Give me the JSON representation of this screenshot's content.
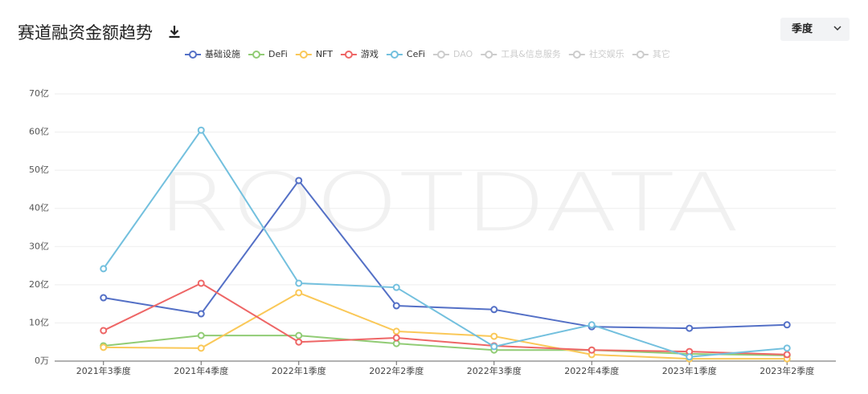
{
  "chart_data": {
    "type": "line",
    "title": "赛道融资金额趋势",
    "period_selector": "季度",
    "watermark": "ROOTDATA",
    "categories": [
      "2021年3季度",
      "2021年4季度",
      "2022年1季度",
      "2022年2季度",
      "2022年3季度",
      "2022年4季度",
      "2023年1季度",
      "2023年2季度"
    ],
    "series": [
      {
        "name": "基础设施",
        "color": "#5470c6",
        "enabled": true,
        "values": [
          16.6,
          12.4,
          47.3,
          14.5,
          13.5,
          9.0,
          8.6,
          9.5
        ]
      },
      {
        "name": "DeFi",
        "color": "#91cc75",
        "enabled": true,
        "values": [
          4.0,
          6.7,
          6.7,
          4.6,
          2.9,
          2.9,
          1.9,
          1.5
        ]
      },
      {
        "name": "NFT",
        "color": "#fac858",
        "enabled": true,
        "values": [
          3.6,
          3.4,
          17.9,
          7.8,
          6.5,
          1.7,
          0.6,
          0.6
        ]
      },
      {
        "name": "游戏",
        "color": "#ee6666",
        "enabled": true,
        "values": [
          8.0,
          20.4,
          5.0,
          6.1,
          4.0,
          2.9,
          2.5,
          1.7
        ]
      },
      {
        "name": "CeFi",
        "color": "#73c0de",
        "enabled": true,
        "values": [
          24.2,
          60.5,
          20.4,
          19.3,
          3.8,
          9.5,
          1.1,
          3.4
        ]
      },
      {
        "name": "DAO",
        "color": "#cccccc",
        "enabled": false,
        "values": [
          null,
          null,
          null,
          null,
          null,
          null,
          null,
          null
        ]
      },
      {
        "name": "工具&信息服务",
        "color": "#cccccc",
        "enabled": false,
        "values": [
          null,
          null,
          null,
          null,
          null,
          null,
          null,
          null
        ]
      },
      {
        "name": "社交娱乐",
        "color": "#cccccc",
        "enabled": false,
        "values": [
          null,
          null,
          null,
          null,
          null,
          null,
          null,
          null
        ]
      },
      {
        "name": "其它",
        "color": "#cccccc",
        "enabled": false,
        "values": [
          null,
          null,
          null,
          null,
          null,
          null,
          null,
          null
        ]
      }
    ],
    "ylim": [
      0,
      70
    ],
    "yticks": [
      {
        "value": 0,
        "label": "0万"
      },
      {
        "value": 10,
        "label": "10亿"
      },
      {
        "value": 20,
        "label": "20亿"
      },
      {
        "value": 30,
        "label": "30亿"
      },
      {
        "value": 40,
        "label": "40亿"
      },
      {
        "value": 50,
        "label": "50亿"
      },
      {
        "value": 60,
        "label": "60亿"
      },
      {
        "value": 70,
        "label": "70亿"
      }
    ],
    "grid": true
  }
}
